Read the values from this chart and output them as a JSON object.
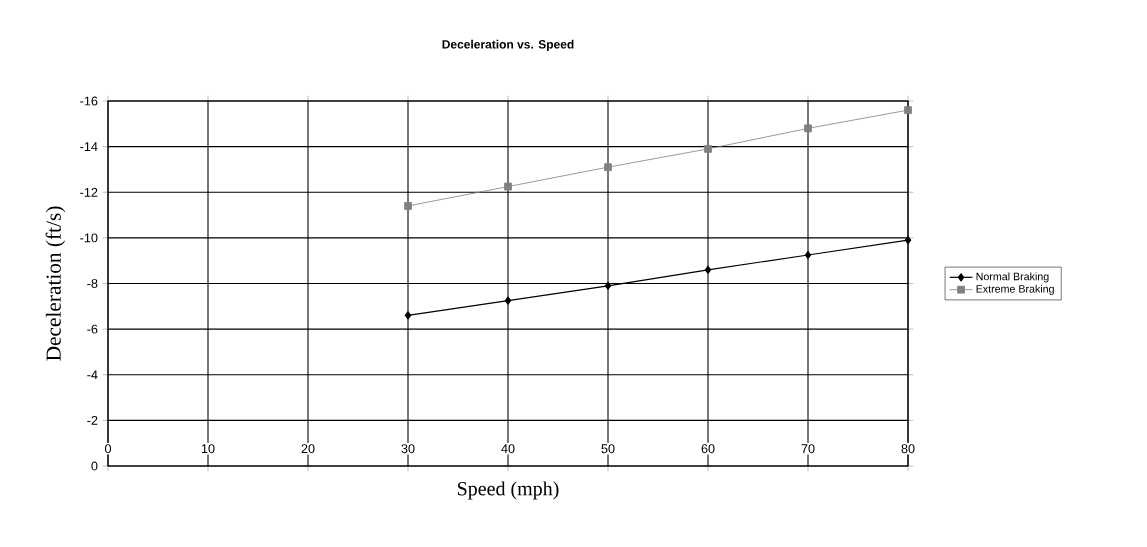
{
  "chart_data": {
    "type": "line",
    "title": "Deceleration vs. Speed",
    "xlabel": "Speed (mph)",
    "ylabel": "Deceleration (ft/s)",
    "x": [
      30,
      40,
      50,
      60,
      70,
      80
    ],
    "series": [
      {
        "name": "Normal Braking",
        "color": "#000000",
        "marker": "diamond",
        "values": [
          -6.6,
          -7.25,
          -7.9,
          -8.6,
          -9.25,
          -9.9
        ]
      },
      {
        "name": "Extreme Braking",
        "color": "#808080",
        "marker": "square",
        "values": [
          -11.4,
          -12.25,
          -13.1,
          -13.9,
          -14.8,
          -15.6
        ]
      }
    ],
    "xlim": [
      0,
      80
    ],
    "xticks": [
      0,
      10,
      20,
      30,
      40,
      50,
      60,
      70,
      80
    ],
    "ylim": [
      0,
      -16
    ],
    "yticks": [
      -16,
      -14,
      -12,
      -10,
      -8,
      -6,
      -4,
      -2,
      0
    ],
    "grid": true,
    "legend": "right"
  }
}
